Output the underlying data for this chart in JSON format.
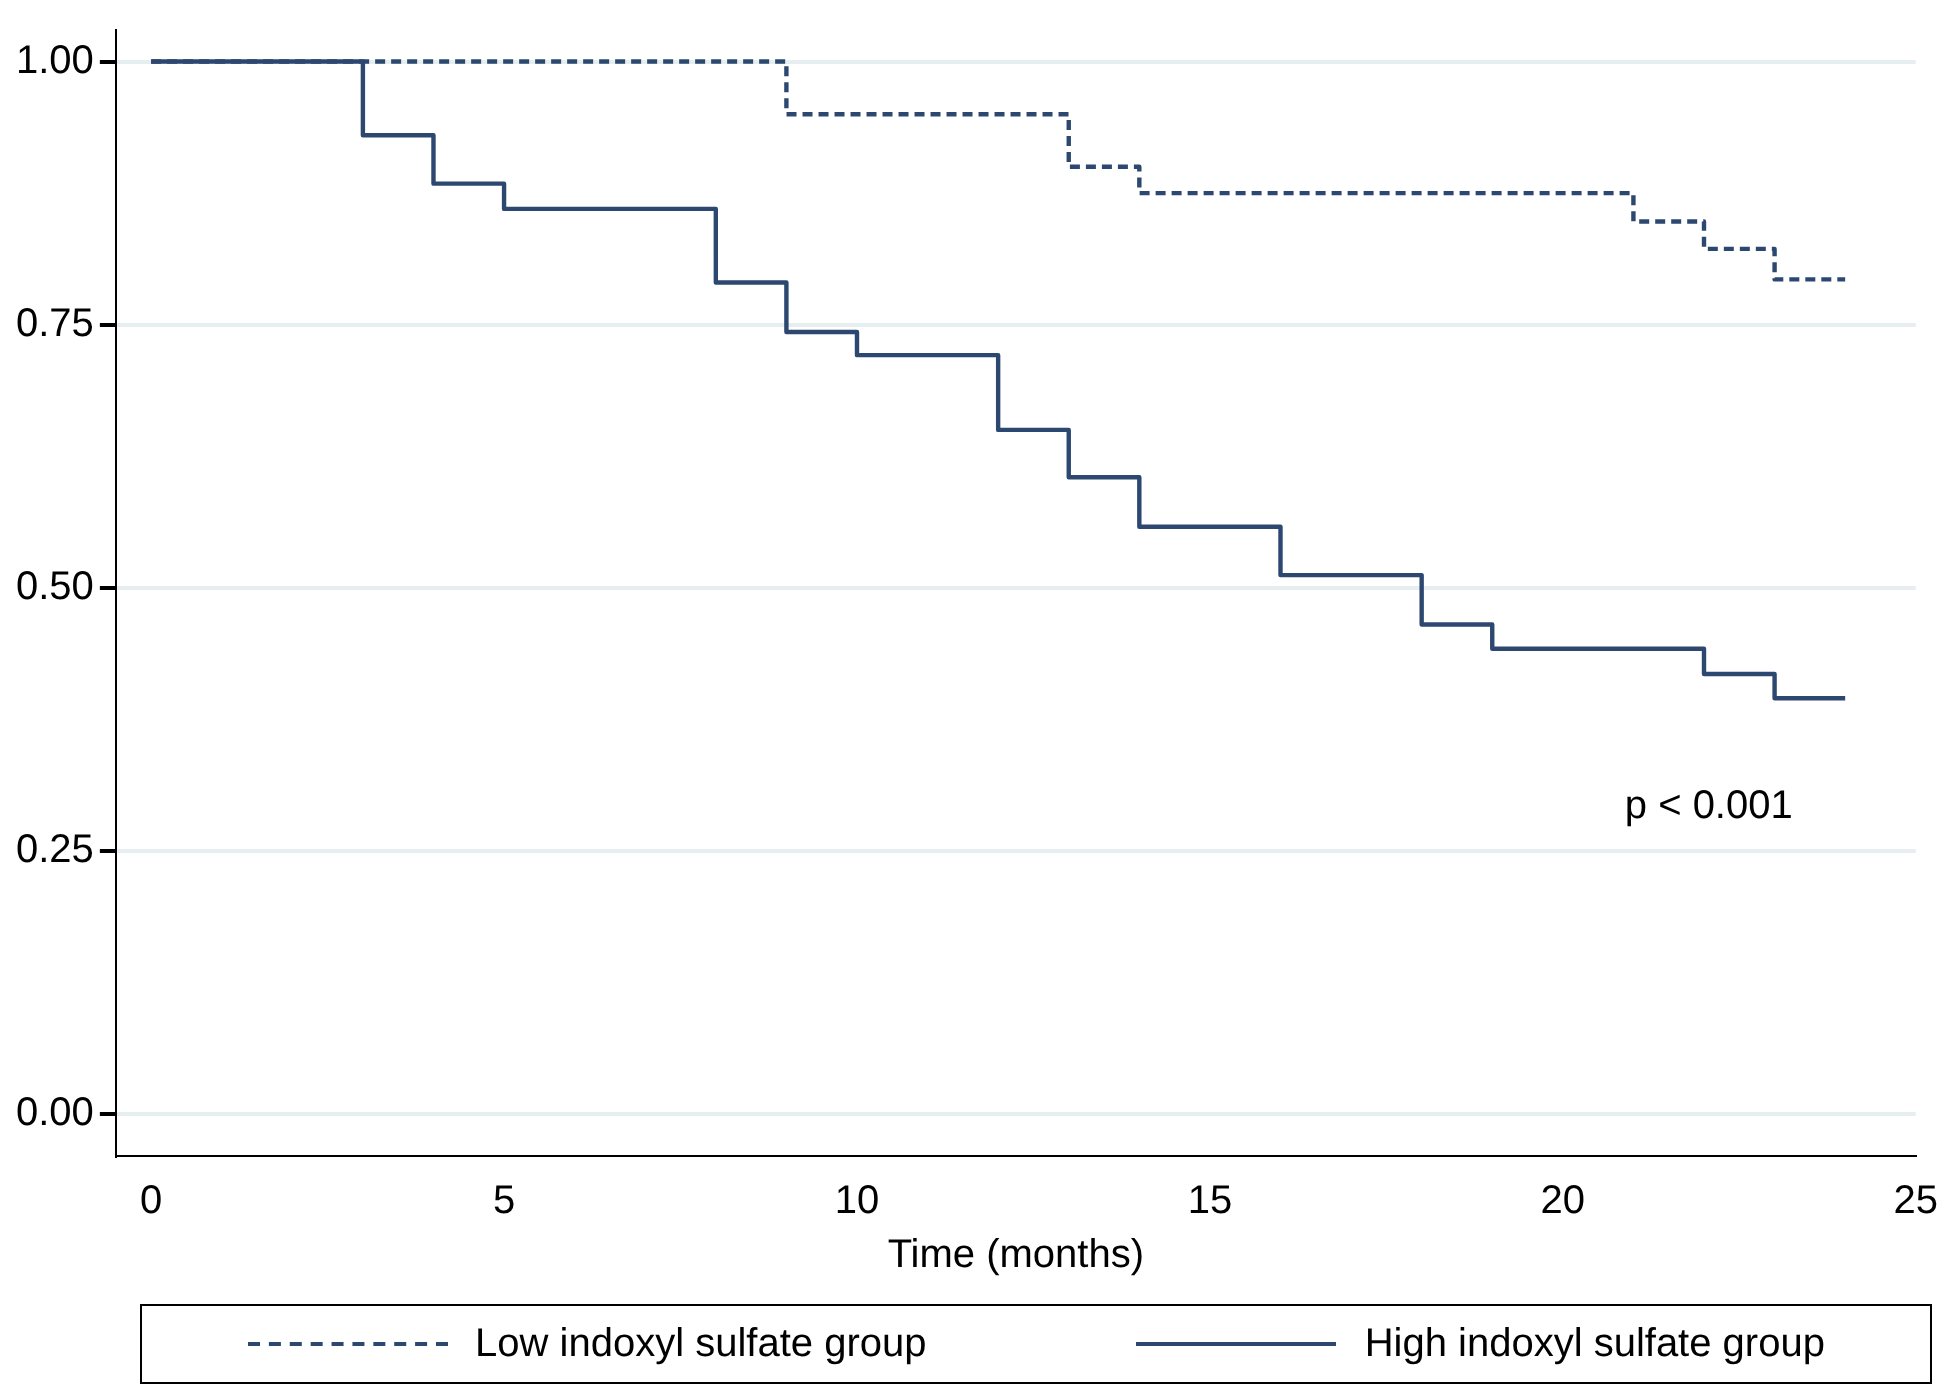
{
  "chart_data": {
    "type": "step",
    "xlabel": "Time (months)",
    "xlim": [
      -0.5,
      25
    ],
    "xticks": [
      0,
      5,
      10,
      15,
      20,
      25
    ],
    "ylim": [
      -0.04,
      1.03
    ],
    "yticks": [
      {
        "value": 0,
        "label": "0.00"
      },
      {
        "value": 0.25,
        "label": "0.25"
      },
      {
        "value": 0.5,
        "label": "0.50"
      },
      {
        "value": 0.75,
        "label": "0.75"
      },
      {
        "value": 1,
        "label": "1.00"
      }
    ],
    "grid": "y",
    "legend": "bottom",
    "marker": "none",
    "annotations": [
      "p < 0.001"
    ],
    "series": [
      {
        "name": "Low indoxyl sulfate group",
        "color": "#2c4770",
        "line_style": "dashed",
        "x": [
          0,
          9,
          13,
          14,
          21,
          22,
          23,
          24
        ],
        "values": [
          1,
          0.95,
          0.9,
          0.875,
          0.848,
          0.822,
          0.793,
          0.793
        ]
      },
      {
        "name": "High indoxyl sulfate group",
        "color": "#2c4770",
        "line_style": "solid",
        "x": [
          0,
          3,
          4,
          5,
          8,
          9,
          10,
          12,
          13,
          14,
          16,
          18,
          19,
          22,
          23,
          24
        ],
        "values": [
          1,
          0.93,
          0.884,
          0.86,
          0.79,
          0.743,
          0.721,
          0.65,
          0.605,
          0.558,
          0.512,
          0.465,
          0.442,
          0.418,
          0.395,
          0.395
        ]
      }
    ]
  }
}
